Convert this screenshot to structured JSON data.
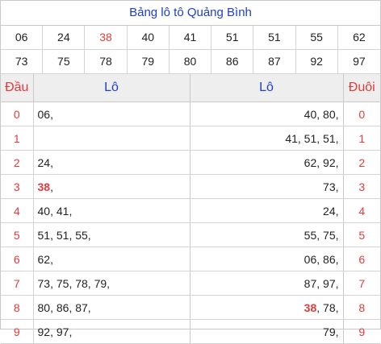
{
  "title": "Bảng lô tô Quảng Bình",
  "numbers": [
    {
      "v": "06"
    },
    {
      "v": "24"
    },
    {
      "v": "38",
      "hl": true
    },
    {
      "v": "40"
    },
    {
      "v": "41"
    },
    {
      "v": "51"
    },
    {
      "v": "51"
    },
    {
      "v": "55"
    },
    {
      "v": "62"
    },
    {
      "v": "73"
    },
    {
      "v": "75"
    },
    {
      "v": "78"
    },
    {
      "v": "79"
    },
    {
      "v": "80"
    },
    {
      "v": "86"
    },
    {
      "v": "87"
    },
    {
      "v": "92"
    },
    {
      "v": "97"
    }
  ],
  "headers": {
    "dau": "Đầu",
    "lo_left": "Lô",
    "lo_right": "Lô",
    "duoi": "Đuôi"
  },
  "rows": [
    {
      "dau": "0",
      "lo_left": [
        "06"
      ],
      "lo_right": [
        "40",
        "80"
      ],
      "duoi": "0"
    },
    {
      "dau": "1",
      "lo_left": [],
      "lo_right": [
        "41",
        "51",
        "51"
      ],
      "duoi": "1"
    },
    {
      "dau": "2",
      "lo_left": [
        "24"
      ],
      "lo_right": [
        "62",
        "92"
      ],
      "duoi": "2"
    },
    {
      "dau": "3",
      "lo_left": [
        "38"
      ],
      "lo_right": [
        "73"
      ],
      "duoi": "3"
    },
    {
      "dau": "4",
      "lo_left": [
        "40",
        "41"
      ],
      "lo_right": [
        "24"
      ],
      "duoi": "4"
    },
    {
      "dau": "5",
      "lo_left": [
        "51",
        "51",
        "55"
      ],
      "lo_right": [
        "55",
        "75"
      ],
      "duoi": "5"
    },
    {
      "dau": "6",
      "lo_left": [
        "62"
      ],
      "lo_right": [
        "06",
        "86"
      ],
      "duoi": "6"
    },
    {
      "dau": "7",
      "lo_left": [
        "73",
        "75",
        "78",
        "79"
      ],
      "lo_right": [
        "87",
        "97"
      ],
      "duoi": "7"
    },
    {
      "dau": "8",
      "lo_left": [
        "80",
        "86",
        "87"
      ],
      "lo_right": [
        "38",
        "78"
      ],
      "duoi": "8"
    },
    {
      "dau": "9",
      "lo_left": [
        "92",
        "97"
      ],
      "lo_right": [
        "79"
      ],
      "duoi": "9"
    }
  ],
  "highlight": [
    "38"
  ],
  "colors": {
    "title": "#1e3fc7",
    "highlight": "#e23b3b",
    "header_bg": "#eeeeee"
  }
}
